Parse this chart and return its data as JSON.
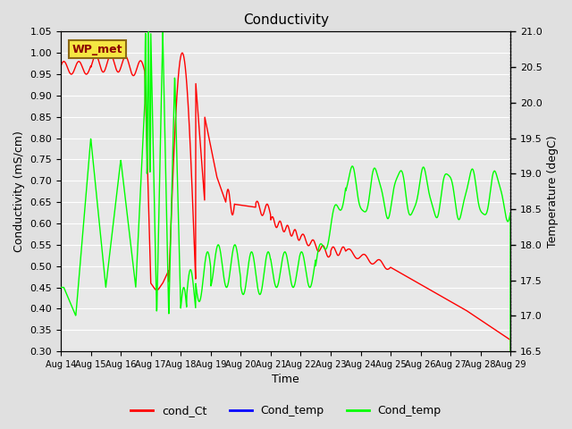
{
  "title": "Conductivity",
  "xlabel": "Time",
  "ylabel_left": "Conductivity (mS/cm)",
  "ylabel_right": "Temperature (degC)",
  "ylim_left": [
    0.3,
    1.05
  ],
  "ylim_right": [
    16.5,
    21.0
  ],
  "yticks_left": [
    0.3,
    0.35,
    0.4,
    0.45,
    0.5,
    0.55,
    0.6,
    0.65,
    0.7,
    0.75,
    0.8,
    0.85,
    0.9,
    0.95,
    1.0,
    1.05
  ],
  "yticks_right": [
    16.5,
    17.0,
    17.5,
    18.0,
    18.5,
    19.0,
    19.5,
    20.0,
    20.5,
    21.0
  ],
  "xtick_labels": [
    "Aug 14",
    "Aug 15",
    "Aug 16",
    "Aug 17",
    "Aug 18",
    "Aug 19",
    "Aug 20",
    "Aug 21",
    "Aug 22",
    "Aug 23",
    "Aug 24",
    "Aug 25",
    "Aug 26",
    "Aug 27",
    "Aug 28",
    "Aug 29"
  ],
  "fig_bg_color": "#e0e0e0",
  "plot_bg_color": "#e8e8e8",
  "grid_color": "#ffffff",
  "legend_labels": [
    "cond_Ct",
    "Cond_temp",
    "Cond_temp"
  ],
  "legend_colors": [
    "red",
    "blue",
    "green"
  ],
  "wp_met_label": "WP_met",
  "wp_met_fg": "#8B0000",
  "wp_met_bg": "#f5e642",
  "wp_met_border": "#8B6914"
}
